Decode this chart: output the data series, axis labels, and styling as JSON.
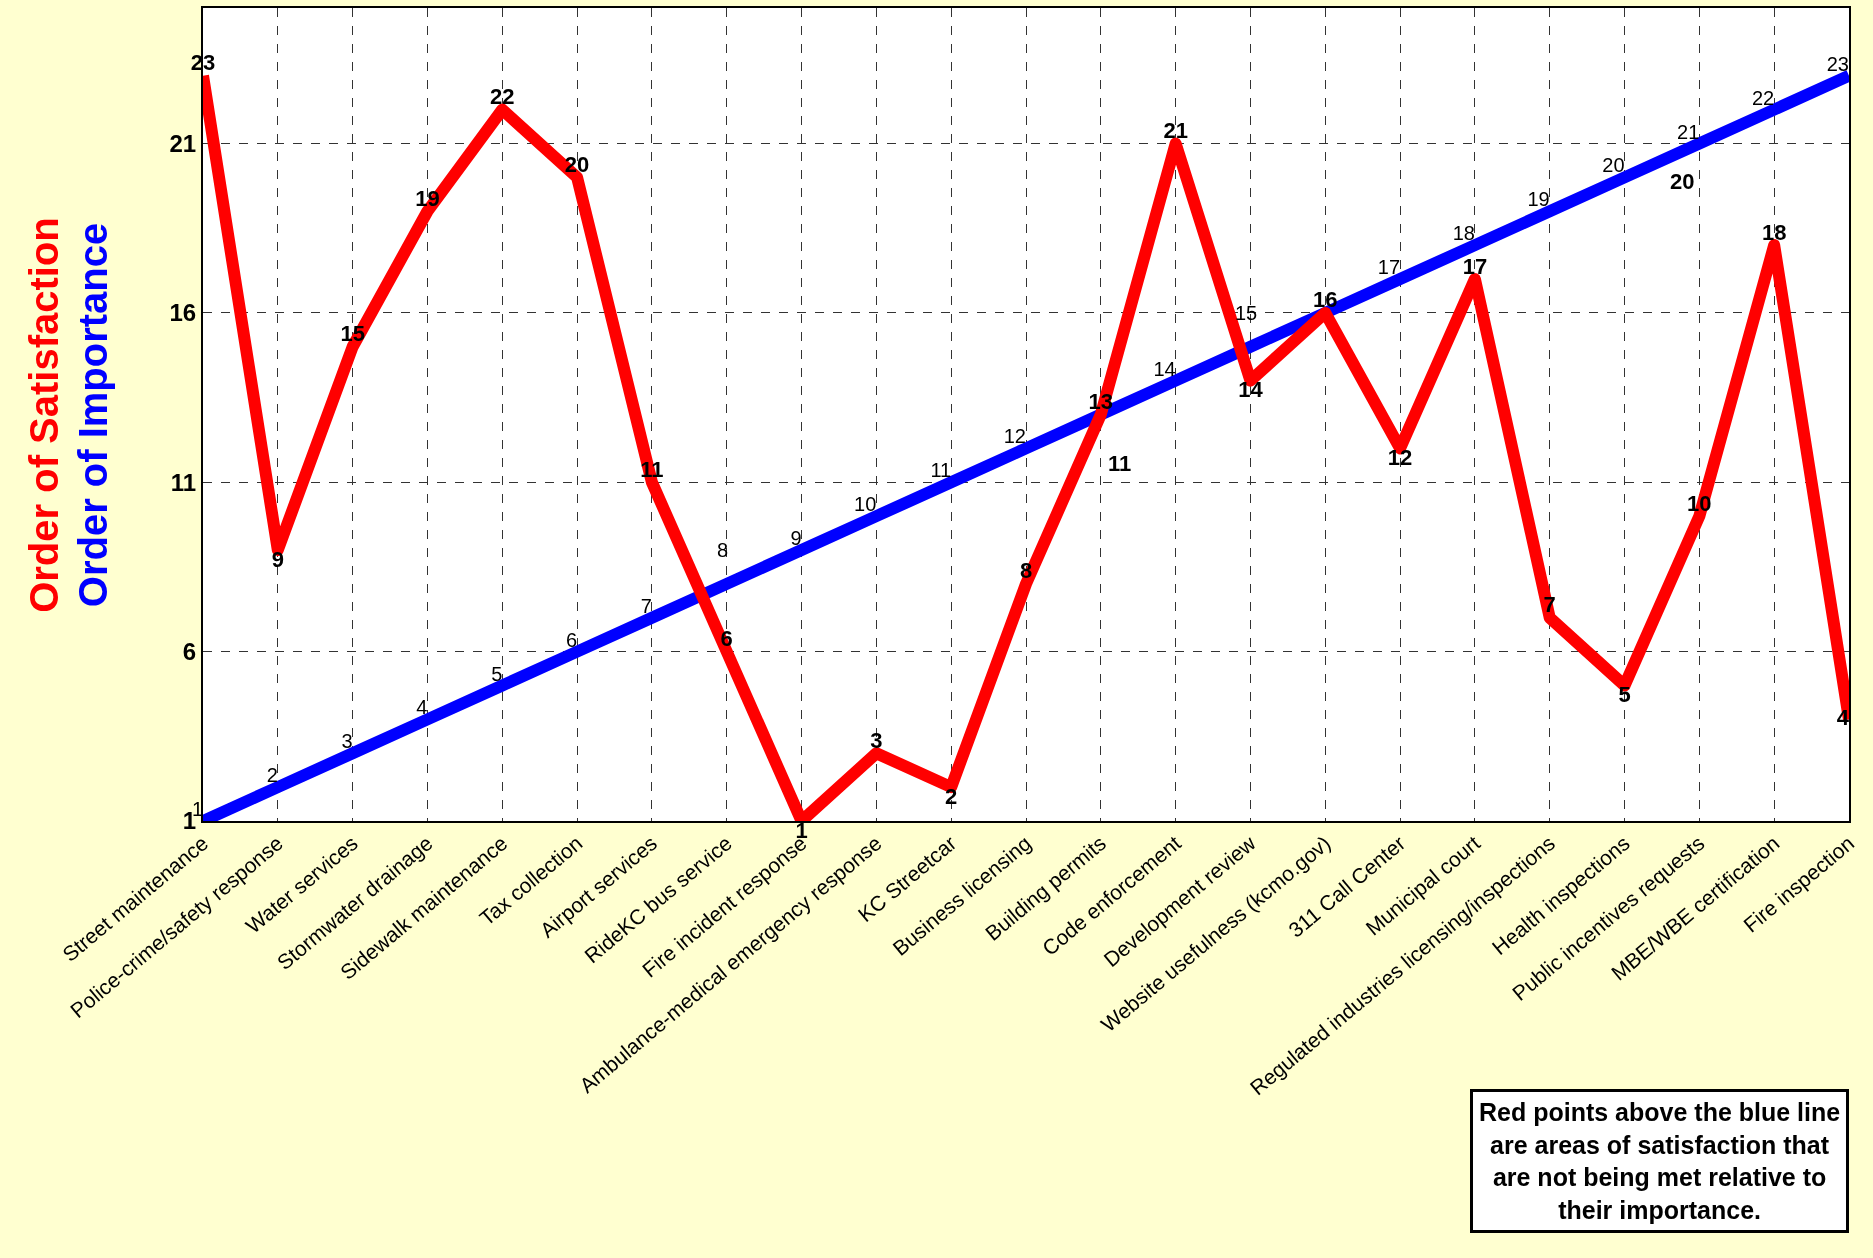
{
  "chart_data": {
    "type": "line",
    "categories": [
      "Street maintenance",
      "Police-crime/safety response",
      "Water services",
      "Stormwater drainage",
      "Sidewalk maintenance",
      "Tax collection",
      "Airport services",
      "RideKC bus service",
      "Fire incident response",
      "Ambulance-medical emergency response",
      "KC Streetcar",
      "Business licensing",
      "Building permits",
      "Code enforcement",
      "Development review",
      "Website usefulness (kcmo.gov)",
      "311 Call Center",
      "Municipal court",
      "Regulated industries licensing/inspections",
      "Health inspections",
      "Public incentives requests",
      "MBE/WBE certification",
      "Fire inspection"
    ],
    "series": [
      {
        "name": "Order of Satisfaction",
        "color": "#ff0000",
        "values": [
          23,
          9,
          15,
          19,
          22,
          20,
          11,
          6,
          1,
          3,
          2,
          8,
          13,
          21,
          14,
          16,
          12,
          17,
          7,
          5,
          10,
          18,
          4
        ]
      },
      {
        "name": "Order of Importance",
        "color": "#0000ff",
        "values": [
          1,
          2,
          3,
          4,
          5,
          6,
          7,
          8,
          9,
          10,
          11,
          12,
          13,
          14,
          15,
          16,
          17,
          18,
          19,
          20,
          21,
          22,
          23
        ],
        "value_labels": [
          "1",
          "2",
          "3",
          "4",
          "5",
          "6",
          "7",
          "8",
          "9",
          "10",
          "11",
          "12",
          null,
          "14",
          "15",
          null,
          "17",
          "18",
          "19",
          "20",
          "21",
          "22",
          "23"
        ]
      }
    ],
    "ylim": [
      1,
      25
    ],
    "yticks": [
      1,
      6,
      11,
      16,
      21
    ],
    "grid": true,
    "legend": false,
    "data_labels": true,
    "line_style": "solid",
    "marker": "none",
    "annotations": [
      "Red points above the blue line are areas of satisfaction that are not being met relative to their importance.",
      "11",
      "20"
    ]
  }
}
